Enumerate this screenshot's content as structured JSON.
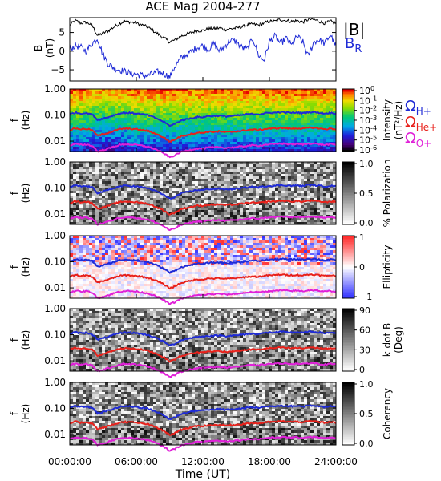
{
  "chart_data": {
    "type": "heatmap",
    "title": "ACE Mag 2004-277",
    "x_axis": {
      "label": "Time (UT)",
      "range_hours": [
        0,
        24
      ],
      "ticks": [
        {
          "hour": 0,
          "label": "00:00:00"
        },
        {
          "hour": 6,
          "label": "06:00:00"
        },
        {
          "hour": 12,
          "label": "12:00:00"
        },
        {
          "hour": 18,
          "label": "18:00:00"
        },
        {
          "hour": 24,
          "label": "24:00:00"
        }
      ]
    },
    "field_panel": {
      "ylabel": "B\n(nT)",
      "ylim": [
        -8,
        9
      ],
      "yticks": [
        5,
        0,
        -5
      ],
      "series": [
        {
          "name": "|B|",
          "color": "#000000",
          "hours": [
            0,
            0.5,
            1,
            1.5,
            2,
            2.5,
            3,
            3.5,
            4,
            4.5,
            5,
            5.5,
            6,
            6.5,
            7,
            7.5,
            8,
            8.5,
            9,
            9.5,
            10,
            10.5,
            11,
            11.5,
            12,
            12.5,
            13,
            13.5,
            14,
            14.5,
            15,
            15.5,
            16,
            16.5,
            17,
            17.5,
            18,
            18.5,
            19,
            19.5,
            20,
            20.5,
            21,
            21.5,
            22,
            22.5,
            23,
            23.5,
            24
          ],
          "values": [
            7,
            8.2,
            7.5,
            7.8,
            7,
            4.2,
            4.8,
            5.5,
            6.5,
            7.5,
            8,
            7.8,
            7.5,
            7,
            6.5,
            5.5,
            4.5,
            3.5,
            2.5,
            3,
            4,
            4.5,
            5,
            5.5,
            5.5,
            6,
            6,
            6.2,
            5.8,
            6,
            6.2,
            6.5,
            7,
            7.2,
            7,
            7.5,
            8,
            8,
            8.5,
            8.2,
            8,
            8.2,
            7.8,
            8.5,
            8.5,
            8,
            7.5,
            8,
            7.5
          ]
        },
        {
          "name": "B",
          "subscript": "R",
          "color": "#1f2bd6",
          "hours": [
            0,
            0.5,
            1,
            1.5,
            2,
            2.5,
            3,
            3.5,
            4,
            4.5,
            5,
            5.5,
            6,
            6.5,
            7,
            7.5,
            8,
            8.5,
            9,
            9.5,
            10,
            10.5,
            11,
            11.5,
            12,
            12.5,
            13,
            13.5,
            14,
            14.5,
            15,
            15.5,
            16,
            16.5,
            17,
            17.5,
            18,
            18.5,
            19,
            19.5,
            20,
            20.5,
            21,
            21.5,
            22,
            22.5,
            23,
            23.5,
            24
          ],
          "values": [
            0.5,
            1.5,
            1,
            0,
            2,
            3.5,
            -1,
            -3.5,
            -4.5,
            -5,
            -5.5,
            -6,
            -6.2,
            -6.5,
            -6.5,
            -6,
            -5.5,
            -6,
            -7,
            -4,
            -2,
            -1,
            0,
            1,
            1.5,
            0.5,
            2,
            0,
            1.5,
            3,
            2.5,
            1,
            0.5,
            3.5,
            -1,
            -2.5,
            2.5,
            4,
            2,
            3.5,
            1.5,
            4,
            2.5,
            -1.5,
            2.5,
            3,
            2,
            4.5,
            1
          ]
        }
      ]
    },
    "ion_gyrofrequencies_hz": {
      "hours": [
        0,
        0.5,
        1,
        1.5,
        2,
        2.5,
        3,
        3.5,
        4,
        4.5,
        5,
        5.5,
        6,
        6.5,
        7,
        7.5,
        8,
        8.5,
        9,
        9.5,
        10,
        10.5,
        11,
        11.5,
        12,
        12.5,
        13,
        13.5,
        14,
        14.5,
        15,
        15.5,
        16,
        16.5,
        17,
        17.5,
        18,
        18.5,
        19,
        19.5,
        20,
        20.5,
        21,
        21.5,
        22,
        22.5,
        23,
        23.5,
        24
      ],
      "series": [
        {
          "label": "Ω",
          "subscript": "H+",
          "color": "#1f2bd6",
          "ion_mass": 1
        },
        {
          "label": "Ω",
          "subscript": "He+",
          "color": "#e8211b",
          "ion_mass": 4
        },
        {
          "label": "Ω",
          "subscript": "O+",
          "color": "#e020d8",
          "ion_mass": 16
        }
      ]
    },
    "spectral_panels": [
      {
        "ylabel": "f\n(Hz)",
        "ylim_hz": [
          0.004,
          1.0
        ],
        "yticks": [
          "1.00",
          "0.10",
          "0.01"
        ],
        "colorbar": {
          "title": "Intensity",
          "unit": "(nT²/Hz)",
          "scale": "log",
          "colormap": "rainbow",
          "ticks": [
            "10^0",
            "10^-1",
            "10^-2",
            "10^-3",
            "10^-4",
            "10^-5",
            "10^-6"
          ]
        }
      },
      {
        "ylabel": "f\n(Hz)",
        "ylim_hz": [
          0.004,
          1.0
        ],
        "yticks": [
          "1.00",
          "0.10",
          "0.01"
        ],
        "colorbar": {
          "title": "% Polarization",
          "unit": "",
          "scale": "linear",
          "colormap": "gray",
          "ticks": [
            "1.0",
            "0.5",
            "0.0"
          ]
        }
      },
      {
        "ylabel": "f\n(Hz)",
        "ylim_hz": [
          0.004,
          1.0
        ],
        "yticks": [
          "1.00",
          "0.10",
          "0.01"
        ],
        "colorbar": {
          "title": "Ellipticity",
          "unit": "",
          "scale": "linear",
          "colormap": "bluewhitered",
          "ticks": [
            "1",
            "0",
            "−1"
          ]
        }
      },
      {
        "ylabel": "f\n(Hz)",
        "ylim_hz": [
          0.004,
          1.0
        ],
        "yticks": [
          "1.00",
          "0.10",
          "0.01"
        ],
        "colorbar": {
          "title": "k dot B",
          "unit": "(Deg)",
          "scale": "linear",
          "colormap": "gray",
          "ticks": [
            "90",
            "60",
            "30",
            "0"
          ]
        }
      },
      {
        "ylabel": "f\n(Hz)",
        "ylim_hz": [
          0.004,
          1.0
        ],
        "yticks": [
          "1.00",
          "0.10",
          "0.01"
        ],
        "colorbar": {
          "title": "Coherency",
          "unit": "",
          "scale": "linear",
          "colormap": "gray",
          "ticks": [
            "1.0",
            "0.5",
            "0.0"
          ]
        }
      }
    ]
  }
}
